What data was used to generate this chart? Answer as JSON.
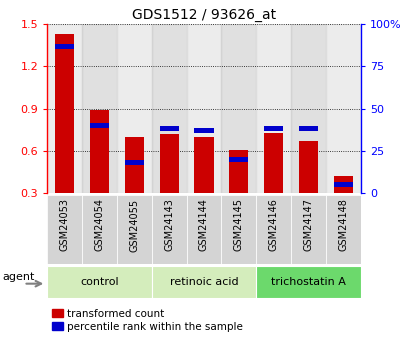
{
  "title": "GDS1512 / 93626_at",
  "categories": [
    "GSM24053",
    "GSM24054",
    "GSM24055",
    "GSM24143",
    "GSM24144",
    "GSM24145",
    "GSM24146",
    "GSM24147",
    "GSM24148"
  ],
  "red_values": [
    1.43,
    0.89,
    0.7,
    0.72,
    0.7,
    0.61,
    0.73,
    0.67,
    0.42
  ],
  "blue_values_pct": [
    87,
    40,
    18,
    38,
    37,
    20,
    38,
    38,
    5
  ],
  "ylim_left": [
    0.3,
    1.5
  ],
  "ylim_right": [
    0,
    100
  ],
  "yticks_left": [
    0.3,
    0.6,
    0.9,
    1.2,
    1.5
  ],
  "yticks_right": [
    0,
    25,
    50,
    75,
    100
  ],
  "yticklabels_right": [
    "0",
    "25",
    "50",
    "75",
    "100%"
  ],
  "group_configs": [
    [
      0,
      2,
      "control",
      "#d4edbc"
    ],
    [
      3,
      5,
      "retinoic acid",
      "#d4edbc"
    ],
    [
      6,
      8,
      "trichostatin A",
      "#6cd96c"
    ]
  ],
  "bar_color_red": "#cc0000",
  "bar_color_blue": "#0000cc",
  "bar_width": 0.55,
  "plot_bg": "#ffffff",
  "agent_label": "agent",
  "legend_items": [
    "transformed count",
    "percentile rank within the sample"
  ],
  "title_fontsize": 10
}
